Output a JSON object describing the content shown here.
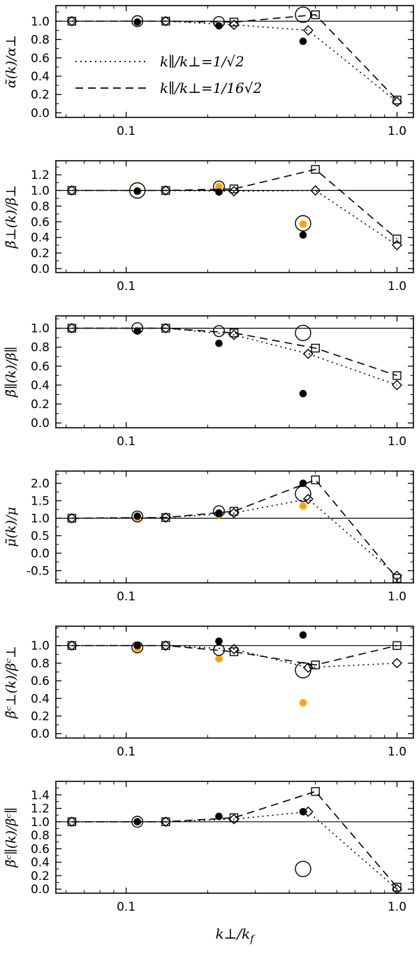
{
  "figure": {
    "xlabel": {
      "main": "k⊥/k",
      "sub": "f"
    },
    "x_axis": {
      "scale": "log",
      "xlim": [
        0.055,
        1.15
      ],
      "major_ticks": [
        0.1,
        1.0
      ],
      "major_labels": [
        "0.1",
        "1.0"
      ],
      "minor_ticks": [
        0.06,
        0.07,
        0.08,
        0.09,
        0.2,
        0.3,
        0.4,
        0.5,
        0.6,
        0.7,
        0.8,
        0.9
      ]
    },
    "colors": {
      "orange": "#FFA500",
      "black": "#000000",
      "background": "#FFFFFF"
    },
    "legend": {
      "position": "upper-left-of-first-panel",
      "items": [
        {
          "style": "dotted",
          "marker": "diamond",
          "label": "k∥/k⊥=1/√2"
        },
        {
          "style": "dashed",
          "marker": "square",
          "label": "k∥/k⊥=1/16√2"
        }
      ]
    }
  },
  "chart_data": [
    {
      "type": "line",
      "ylabel": "α̃(k)/α⊥",
      "ylim": [
        -0.05,
        1.17
      ],
      "yticks": [
        0.0,
        0.2,
        0.4,
        0.6,
        0.8,
        1.0
      ],
      "ytick_labels": [
        "0.0",
        "0.2",
        "0.4",
        "0.6",
        "0.8",
        "1.0"
      ],
      "hline": 1.0,
      "grid": false,
      "series": [
        {
          "name": "k∥/k⊥=1/√2",
          "style": "dotted",
          "marker": "diamond",
          "x": [
            0.063,
            0.14,
            0.25,
            0.47,
            1.0
          ],
          "y": [
            1.0,
            1.0,
            0.96,
            0.9,
            0.12
          ]
        },
        {
          "name": "k∥/k⊥=1/16√2",
          "style": "dashed",
          "marker": "square",
          "x": [
            0.063,
            0.14,
            0.25,
            0.5,
            1.0
          ],
          "y": [
            1.0,
            1.0,
            0.99,
            1.07,
            0.14
          ]
        }
      ],
      "points": [
        {
          "name": "filled-black",
          "x": [
            0.11,
            0.22,
            0.45
          ],
          "y": [
            0.99,
            0.95,
            0.78
          ]
        },
        {
          "name": "open-circle",
          "x": [
            0.11,
            0.22,
            0.45
          ],
          "y": [
            1.0,
            0.99,
            1.07
          ],
          "size": [
            "s",
            "s",
            "l"
          ]
        }
      ]
    },
    {
      "type": "line",
      "ylabel": "β̃⊥(k)/β⊥",
      "ylim": [
        -0.05,
        1.38
      ],
      "yticks": [
        0.0,
        0.2,
        0.4,
        0.6,
        0.8,
        1.0,
        1.2
      ],
      "ytick_labels": [
        "0.0",
        "0.2",
        "0.4",
        "0.6",
        "0.8",
        "1.0",
        "1.2"
      ],
      "hline": 1.0,
      "grid": false,
      "series": [
        {
          "name": "k∥/k⊥=1/√2",
          "style": "dotted",
          "marker": "diamond",
          "x": [
            0.063,
            0.14,
            0.25,
            0.5,
            1.0
          ],
          "y": [
            1.0,
            1.0,
            0.99,
            1.0,
            0.3
          ]
        },
        {
          "name": "k∥/k⊥=1/16√2",
          "style": "dashed",
          "marker": "square",
          "x": [
            0.063,
            0.14,
            0.25,
            0.5,
            1.0
          ],
          "y": [
            1.0,
            1.0,
            1.02,
            1.27,
            0.38
          ]
        }
      ],
      "points": [
        {
          "name": "filled-orange",
          "x": [
            0.11,
            0.22,
            0.45
          ],
          "y": [
            1.0,
            1.05,
            0.57
          ]
        },
        {
          "name": "filled-black",
          "x": [
            0.11,
            0.22,
            0.45
          ],
          "y": [
            0.99,
            0.98,
            0.43
          ]
        },
        {
          "name": "open-circle",
          "x": [
            0.11,
            0.22,
            0.45
          ],
          "y": [
            1.0,
            1.05,
            0.58
          ],
          "size": [
            "l",
            "s",
            "l"
          ]
        }
      ]
    },
    {
      "type": "line",
      "ylabel": "β̃∥(k)/β∥",
      "ylim": [
        -0.05,
        1.13
      ],
      "yticks": [
        0.0,
        0.2,
        0.4,
        0.6,
        0.8,
        1.0
      ],
      "ytick_labels": [
        "0.0",
        "0.2",
        "0.4",
        "0.6",
        "0.8",
        "1.0"
      ],
      "hline": 1.0,
      "grid": false,
      "series": [
        {
          "name": "k∥/k⊥=1/√2",
          "style": "dotted",
          "marker": "diamond",
          "x": [
            0.063,
            0.14,
            0.25,
            0.47,
            1.0
          ],
          "y": [
            1.0,
            1.0,
            0.93,
            0.73,
            0.4
          ]
        },
        {
          "name": "k∥/k⊥=1/16√2",
          "style": "dashed",
          "marker": "square",
          "x": [
            0.063,
            0.14,
            0.25,
            0.5,
            1.0
          ],
          "y": [
            1.0,
            1.0,
            0.95,
            0.79,
            0.5
          ]
        }
      ],
      "points": [
        {
          "name": "filled-black",
          "x": [
            0.11,
            0.22,
            0.45
          ],
          "y": [
            0.97,
            0.84,
            0.31
          ]
        },
        {
          "name": "open-circle",
          "x": [
            0.11,
            0.22,
            0.45
          ],
          "y": [
            1.0,
            0.97,
            0.95
          ],
          "size": [
            "s",
            "s",
            "l"
          ]
        }
      ]
    },
    {
      "type": "line",
      "ylabel": "μ̃(k)/μ",
      "ylim": [
        -0.85,
        2.35
      ],
      "yticks": [
        -0.5,
        0.0,
        0.5,
        1.0,
        1.5,
        2.0
      ],
      "ytick_labels": [
        "-0.5",
        "0.0",
        "0.5",
        "1.0",
        "1.5",
        "2.0"
      ],
      "hline": 1.0,
      "grid": false,
      "series": [
        {
          "name": "k∥/k⊥=1/√2",
          "style": "dotted",
          "marker": "diamond",
          "x": [
            0.063,
            0.14,
            0.25,
            0.47,
            1.0
          ],
          "y": [
            1.0,
            1.02,
            1.15,
            1.55,
            -0.65
          ]
        },
        {
          "name": "k∥/k⊥=1/16√2",
          "style": "dashed",
          "marker": "square",
          "x": [
            0.063,
            0.14,
            0.25,
            0.5,
            1.0
          ],
          "y": [
            1.0,
            1.02,
            1.2,
            2.1,
            -0.72
          ]
        }
      ],
      "points": [
        {
          "name": "filled-orange",
          "x": [
            0.11,
            0.22,
            0.45
          ],
          "y": [
            1.02,
            1.1,
            1.35
          ]
        },
        {
          "name": "filled-black",
          "x": [
            0.11,
            0.22,
            0.45
          ],
          "y": [
            1.06,
            1.15,
            2.0
          ]
        },
        {
          "name": "open-circle",
          "x": [
            0.11,
            0.22,
            0.45
          ],
          "y": [
            1.05,
            1.2,
            1.7
          ],
          "size": [
            "s",
            "s",
            "l"
          ]
        }
      ]
    },
    {
      "type": "line",
      "ylabel": "β̃ᶜ⊥(k)/βᶜ⊥",
      "ylim": [
        -0.05,
        1.22
      ],
      "yticks": [
        0.0,
        0.2,
        0.4,
        0.6,
        0.8,
        1.0
      ],
      "ytick_labels": [
        "0.0",
        "0.2",
        "0.4",
        "0.6",
        "0.8",
        "1.0"
      ],
      "hline": 1.0,
      "grid": false,
      "series": [
        {
          "name": "k∥/k⊥=1/√2",
          "style": "dotted",
          "marker": "diamond",
          "x": [
            0.063,
            0.14,
            0.25,
            0.47,
            1.0
          ],
          "y": [
            1.0,
            1.0,
            0.96,
            0.75,
            0.8
          ]
        },
        {
          "name": "k∥/k⊥=1/16√2",
          "style": "dashed",
          "marker": "square",
          "x": [
            0.063,
            0.14,
            0.25,
            0.5,
            1.0
          ],
          "y": [
            1.0,
            1.0,
            0.93,
            0.78,
            1.0
          ]
        }
      ],
      "points": [
        {
          "name": "filled-orange",
          "x": [
            0.11,
            0.22,
            0.45
          ],
          "y": [
            0.97,
            0.85,
            0.35
          ]
        },
        {
          "name": "filled-black",
          "x": [
            0.11,
            0.22,
            0.45
          ],
          "y": [
            1.0,
            1.05,
            1.12
          ]
        },
        {
          "name": "open-circle",
          "x": [
            0.11,
            0.22,
            0.45
          ],
          "y": [
            0.98,
            0.95,
            0.72
          ],
          "size": [
            "s",
            "s",
            "l"
          ]
        }
      ]
    },
    {
      "type": "line",
      "ylabel": "β̃ᶜ∥(k)/βᶜ∥",
      "ylim": [
        -0.06,
        1.6
      ],
      "yticks": [
        0.0,
        0.2,
        0.4,
        0.6,
        0.8,
        1.0,
        1.2,
        1.4
      ],
      "ytick_labels": [
        "0.0",
        "0.2",
        "0.4",
        "0.6",
        "0.8",
        "1.0",
        "1.2",
        "1.4"
      ],
      "hline": 1.0,
      "grid": false,
      "series": [
        {
          "name": "k∥/k⊥=1/√2",
          "style": "dotted",
          "marker": "diamond",
          "x": [
            0.063,
            0.14,
            0.25,
            0.47,
            1.0
          ],
          "y": [
            1.0,
            1.0,
            1.04,
            1.15,
            0.0
          ]
        },
        {
          "name": "k∥/k⊥=1/16√2",
          "style": "dashed",
          "marker": "square",
          "x": [
            0.063,
            0.14,
            0.25,
            0.5,
            1.0
          ],
          "y": [
            1.0,
            1.0,
            1.06,
            1.45,
            0.03
          ]
        }
      ],
      "points": [
        {
          "name": "filled-black",
          "x": [
            0.11,
            0.22,
            0.45
          ],
          "y": [
            1.0,
            1.08,
            1.15
          ]
        },
        {
          "name": "open-circle",
          "x": [
            0.11,
            0.45
          ],
          "y": [
            1.0,
            0.3
          ],
          "size": [
            "s",
            "l"
          ]
        }
      ]
    }
  ]
}
